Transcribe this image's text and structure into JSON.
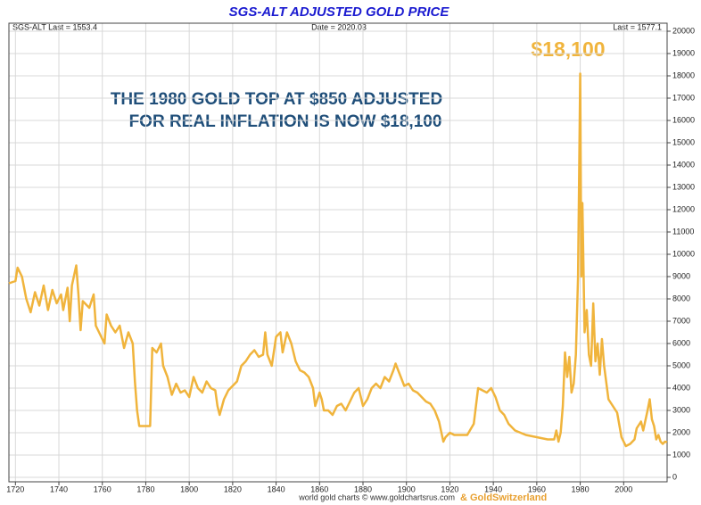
{
  "chart_data": {
    "type": "line",
    "title": "SGS-ALT ADJUSTED  GOLD PRICE",
    "header_left": "SGS-ALT Last = 1553.4",
    "header_center": "Date = 2020.03",
    "header_right": "Last = 1577.1",
    "annotation_peak": "$18,100",
    "annotation_lines": [
      "THE 1980 GOLD TOP AT $850 ADJUSTED",
      "FOR REAL INFLATION IS NOW $18,100"
    ],
    "footer": "world gold charts © www.goldchartsrus.com",
    "footer_brand": "& GoldSwitzerland",
    "color": "#f0b43c",
    "xlim": [
      1717,
      2020
    ],
    "xticks": [
      1720,
      1740,
      1760,
      1780,
      1800,
      1820,
      1840,
      1860,
      1880,
      1900,
      1920,
      1940,
      1960,
      1980,
      2000
    ],
    "ylim": [
      0,
      20000
    ],
    "yticks": [
      0,
      1000,
      2000,
      3000,
      4000,
      5000,
      6000,
      7000,
      8000,
      9000,
      10000,
      11000,
      12000,
      13000,
      14000,
      15000,
      16000,
      17000,
      18000,
      19000,
      20000
    ],
    "grid": true,
    "x": [
      1717,
      1720,
      1721,
      1723,
      1725,
      1727,
      1729,
      1731,
      1733,
      1735,
      1737,
      1739,
      1741,
      1742,
      1744,
      1745,
      1746,
      1748,
      1749,
      1750,
      1751,
      1754,
      1756,
      1757,
      1759,
      1761,
      1762,
      1764,
      1766,
      1768,
      1770,
      1772,
      1774,
      1775,
      1776,
      1777,
      1780,
      1782,
      1783,
      1785,
      1787,
      1788,
      1790,
      1792,
      1794,
      1796,
      1798,
      1800,
      1802,
      1804,
      1806,
      1808,
      1810,
      1812,
      1813,
      1814,
      1816,
      1818,
      1820,
      1822,
      1824,
      1826,
      1828,
      1830,
      1832,
      1834,
      1835,
      1836,
      1838,
      1840,
      1842,
      1843,
      1845,
      1847,
      1849,
      1851,
      1853,
      1855,
      1857,
      1858,
      1860,
      1861,
      1862,
      1864,
      1866,
      1868,
      1870,
      1872,
      1874,
      1876,
      1878,
      1880,
      1882,
      1884,
      1886,
      1888,
      1890,
      1892,
      1894,
      1895,
      1897,
      1899,
      1901,
      1903,
      1905,
      1907,
      1909,
      1911,
      1913,
      1915,
      1917,
      1918,
      1920,
      1922,
      1925,
      1928,
      1931,
      1933,
      1935,
      1937,
      1939,
      1941,
      1943,
      1945,
      1947,
      1950,
      1955,
      1960,
      1965,
      1968,
      1969,
      1970,
      1971,
      1972,
      1973,
      1974,
      1975,
      1976,
      1977,
      1978,
      1979,
      1980,
      1980.5,
      1981,
      1982,
      1983,
      1984,
      1985,
      1986,
      1987,
      1988,
      1989,
      1990,
      1991,
      1993,
      1995,
      1997,
      1999,
      2001,
      2003,
      2005,
      2006,
      2008,
      2009,
      2011,
      2012,
      2013,
      2014,
      2015,
      2016,
      2017,
      2018,
      2019,
      2020
    ],
    "values": [
      8700,
      8800,
      9400,
      9000,
      8000,
      7400,
      8300,
      7700,
      8600,
      7500,
      8400,
      7800,
      8200,
      7500,
      8500,
      7000,
      8600,
      9500,
      8200,
      6600,
      7900,
      7600,
      8200,
      6800,
      6400,
      6000,
      7300,
      6800,
      6500,
      6800,
      5800,
      6500,
      6000,
      4300,
      3000,
      2300,
      2300,
      2300,
      5800,
      5600,
      6000,
      5000,
      4500,
      3700,
      4200,
      3800,
      3900,
      3600,
      4500,
      4000,
      3800,
      4300,
      4000,
      3900,
      3200,
      2800,
      3500,
      3900,
      4100,
      4300,
      5000,
      5200,
      5500,
      5700,
      5400,
      5500,
      6500,
      5500,
      5000,
      6300,
      6500,
      5600,
      6500,
      6000,
      5200,
      4800,
      4700,
      4500,
      4000,
      3200,
      3800,
      3500,
      3000,
      3000,
      2800,
      3200,
      3300,
      3000,
      3400,
      3800,
      4000,
      3200,
      3500,
      4000,
      4200,
      4000,
      4500,
      4300,
      4800,
      5100,
      4600,
      4100,
      4200,
      3900,
      3800,
      3600,
      3400,
      3300,
      3000,
      2500,
      1600,
      1800,
      2000,
      1900,
      1900,
      1900,
      2400,
      4000,
      3900,
      3800,
      4000,
      3600,
      3000,
      2800,
      2400,
      2100,
      1900,
      1800,
      1700,
      1700,
      2100,
      1600,
      2000,
      3200,
      5600,
      4500,
      5400,
      3800,
      4200,
      5500,
      9000,
      18100,
      9000,
      12300,
      6500,
      7500,
      5500,
      5000,
      7800,
      5200,
      6000,
      4600,
      6200,
      5000,
      3500,
      3200,
      2900,
      1800,
      1400,
      1500,
      1700,
      2200,
      2500,
      2100,
      3000,
      3500,
      2600,
      2300,
      1700,
      1900,
      1600,
      1500,
      1600,
      1577
    ]
  }
}
